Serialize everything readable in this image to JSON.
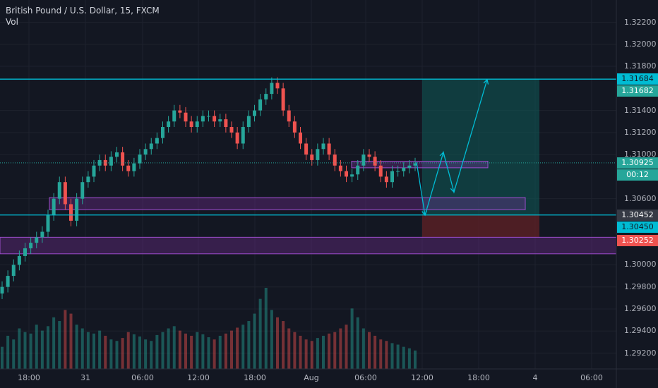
{
  "legend": {
    "symbol": "British Pound / U.S. Dollar, 15, FXCM",
    "volume_label": "Vol"
  },
  "colors": {
    "background": "#131722",
    "up": "#26a69a",
    "down": "#ef5350",
    "line": "#00bcd4",
    "zone": "#7b2f9b",
    "target_fill": "#0e5b57",
    "stop_fill": "#5c2025"
  },
  "price_axis": {
    "labels": [
      "1.32200",
      "1.32000",
      "1.31800",
      "1.31400",
      "1.31200",
      "1.31000",
      "1.30600",
      "1.30000",
      "1.29800",
      "1.29600",
      "1.29400",
      "1.29200"
    ]
  },
  "time_axis": {
    "labels": [
      "18:00",
      "31",
      "06:00",
      "12:00",
      "18:00",
      "Aug",
      "06:00",
      "12:00",
      "18:00",
      "4",
      "06:00"
    ]
  },
  "price_tags": [
    {
      "id": "target",
      "text": "1.31684",
      "bg": "#00bcd4",
      "fg": "#131722"
    },
    {
      "id": "target2",
      "text": "1.31682",
      "bg": "#26a69a",
      "fg": "#ffffff"
    },
    {
      "id": "last",
      "text": "1.30925",
      "bg": "#26a69a",
      "fg": "#ffffff"
    },
    {
      "id": "timer",
      "text": "00:12",
      "bg": "#26a69a",
      "fg": "#ffffff"
    },
    {
      "id": "entry",
      "text": "1.30452",
      "bg": "#363a45",
      "fg": "#ffffff"
    },
    {
      "id": "entry2",
      "text": "1.30450",
      "bg": "#00bcd4",
      "fg": "#131722"
    },
    {
      "id": "stop",
      "text": "1.30252",
      "bg": "#ef5350",
      "fg": "#ffffff"
    }
  ],
  "chart_data": {
    "type": "candlestick",
    "symbol": "GBPUSD",
    "timeframe": "15",
    "ylim": [
      1.2905,
      1.3232
    ],
    "horizontal_levels": [
      1.31684,
      1.30452
    ],
    "last_price": 1.30925,
    "target": 1.31684,
    "entry": 1.30452,
    "stop": 1.30252,
    "zones": [
      {
        "from": 1.305,
        "to": 1.3061
      },
      {
        "from": 1.301,
        "to": 1.3025
      },
      {
        "from": 1.3088,
        "to": 1.3094
      }
    ],
    "projection": [
      1.3093,
      1.3045,
      1.3102,
      1.3066,
      1.3168
    ],
    "closes": [
      1.298,
      1.299,
      1.3,
      1.3008,
      1.3015,
      1.302,
      1.3025,
      1.303,
      1.3045,
      1.306,
      1.3075,
      1.3055,
      1.304,
      1.306,
      1.3075,
      1.308,
      1.309,
      1.3095,
      1.309,
      1.3098,
      1.3102,
      1.309,
      1.3085,
      1.3092,
      1.31,
      1.3105,
      1.311,
      1.3115,
      1.3125,
      1.313,
      1.314,
      1.3138,
      1.313,
      1.3125,
      1.313,
      1.3135,
      1.3135,
      1.313,
      1.3132,
      1.3125,
      1.312,
      1.311,
      1.3125,
      1.3135,
      1.314,
      1.315,
      1.3155,
      1.3165,
      1.316,
      1.314,
      1.313,
      1.312,
      1.311,
      1.31,
      1.3095,
      1.3105,
      1.311,
      1.31,
      1.309,
      1.3085,
      1.308,
      1.3082,
      1.309,
      1.31,
      1.3098,
      1.309,
      1.308,
      1.3075,
      1.3085,
      1.3085,
      1.3088,
      1.309,
      1.3092
    ],
    "volumes": [
      30,
      45,
      40,
      55,
      50,
      48,
      60,
      52,
      58,
      70,
      65,
      80,
      75,
      60,
      55,
      50,
      48,
      52,
      45,
      40,
      38,
      42,
      50,
      47,
      44,
      40,
      38,
      46,
      50,
      55,
      58,
      52,
      48,
      45,
      50,
      47,
      43,
      40,
      45,
      48,
      52,
      56,
      60,
      65,
      75,
      95,
      110,
      80,
      70,
      65,
      55,
      50,
      45,
      40,
      38,
      42,
      45,
      48,
      50,
      55,
      60,
      82,
      70,
      55,
      50,
      45,
      40,
      38,
      35,
      33,
      30,
      28,
      25
    ]
  }
}
